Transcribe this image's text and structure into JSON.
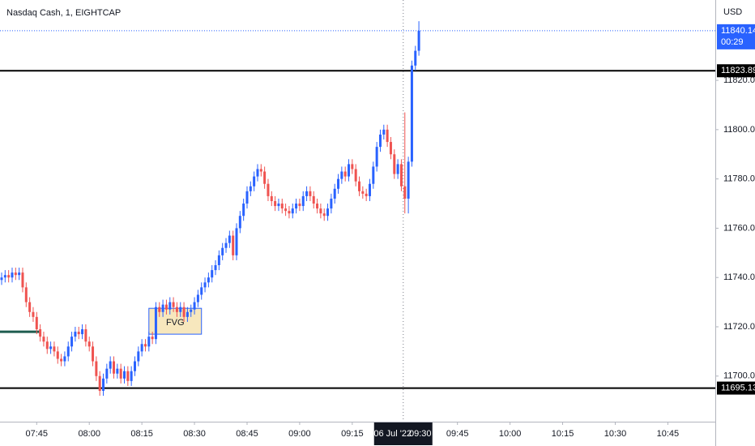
{
  "chart_data": {
    "type": "candlestick",
    "title": "Nasdaq Cash, 1, EIGHTCAP",
    "currency": "USD",
    "up_color": "#2962ff",
    "down_color": "#ef5350",
    "x": [
      "07:35",
      "07:36",
      "07:37",
      "07:38",
      "07:39",
      "07:40",
      "07:41",
      "07:42",
      "07:43",
      "07:44",
      "07:45",
      "07:46",
      "07:47",
      "07:48",
      "07:49",
      "07:50",
      "07:51",
      "07:52",
      "07:53",
      "07:54",
      "07:55",
      "07:56",
      "07:57",
      "07:58",
      "07:59",
      "08:00",
      "08:01",
      "08:02",
      "08:03",
      "08:04",
      "08:05",
      "08:06",
      "08:07",
      "08:08",
      "08:09",
      "08:10",
      "08:11",
      "08:12",
      "08:13",
      "08:14",
      "08:15",
      "08:16",
      "08:17",
      "08:18",
      "08:19",
      "08:20",
      "08:21",
      "08:22",
      "08:23",
      "08:24",
      "08:25",
      "08:26",
      "08:27",
      "08:28",
      "08:29",
      "08:30",
      "08:31",
      "08:32",
      "08:33",
      "08:34",
      "08:35",
      "08:36",
      "08:37",
      "08:38",
      "08:39",
      "08:40",
      "08:41",
      "08:42",
      "08:43",
      "08:44",
      "08:45",
      "08:46",
      "08:47",
      "08:48",
      "08:49",
      "08:50",
      "08:51",
      "08:52",
      "08:53",
      "08:54",
      "08:55",
      "08:56",
      "08:57",
      "08:58",
      "08:59",
      "09:00",
      "09:01",
      "09:02",
      "09:03",
      "09:04",
      "09:05",
      "09:06",
      "09:07",
      "09:08",
      "09:09",
      "09:10",
      "09:11",
      "09:12",
      "09:13",
      "09:14",
      "09:15",
      "09:16",
      "09:17",
      "09:18",
      "09:19",
      "09:20",
      "09:21",
      "09:22",
      "09:23",
      "09:24",
      "09:25",
      "09:26",
      "09:27",
      "09:28",
      "09:29",
      "09:30",
      "09:31",
      "09:32",
      "09:33",
      "09:34"
    ],
    "open": [
      11739,
      11740,
      11741,
      11740,
      11742,
      11741,
      11742,
      11736,
      11730,
      11726,
      11724,
      11719,
      11716,
      11714,
      11711,
      11712,
      11710,
      11707,
      11706,
      11708,
      11712,
      11716,
      11718,
      11717,
      11719,
      11714,
      11712,
      11706,
      11700,
      11694,
      11699,
      11703,
      11706,
      11701,
      11703,
      11699,
      11702,
      11698,
      11702,
      11706,
      11710,
      11713,
      11712,
      11716,
      11715,
      11728,
      11726,
      11729,
      11727,
      11730,
      11728,
      11726,
      11728,
      11724,
      11726,
      11727,
      11730,
      11733,
      11736,
      11738,
      11740,
      11743,
      11745,
      11749,
      11752,
      11754,
      11757,
      11749,
      11760,
      11765,
      11770,
      11775,
      11777,
      11781,
      11784,
      11783,
      11778,
      11773,
      11771,
      11769,
      11770,
      11768,
      11767,
      11766,
      11768,
      11770,
      11769,
      11773,
      11775,
      11773,
      11770,
      11768,
      11766,
      11765,
      11768,
      11772,
      11776,
      11780,
      11783,
      11781,
      11786,
      11784,
      11779,
      11775,
      11774,
      11773,
      11778,
      11785,
      11793,
      11798,
      11800,
      11795,
      11790,
      11782,
      11786,
      11777,
      11772,
      11787,
      11826,
      11832
    ],
    "high": [
      11742,
      11743,
      11743,
      11744,
      11744,
      11744,
      11744,
      11738,
      11732,
      11728,
      11726,
      11721,
      11718,
      11716,
      11714,
      11714,
      11712,
      11709,
      11710,
      11714,
      11718,
      11720,
      11720,
      11721,
      11721,
      11716,
      11714,
      11708,
      11702,
      11701,
      11705,
      11708,
      11708,
      11705,
      11705,
      11704,
      11704,
      11704,
      11708,
      11712,
      11715,
      11715,
      11718,
      11718,
      11730,
      11730,
      11731,
      11731,
      11732,
      11732,
      11730,
      11730,
      11730,
      11728,
      11729,
      11732,
      11735,
      11738,
      11740,
      11742,
      11745,
      11747,
      11751,
      11754,
      11756,
      11759,
      11759,
      11762,
      11767,
      11772,
      11777,
      11779,
      11783,
      11786,
      11786,
      11785,
      11780,
      11775,
      11773,
      11772,
      11772,
      11770,
      11769,
      11770,
      11772,
      11772,
      11775,
      11777,
      11777,
      11775,
      11772,
      11770,
      11768,
      11770,
      11774,
      11778,
      11782,
      11785,
      11785,
      11788,
      11788,
      11786,
      11781,
      11777,
      11776,
      11780,
      11787,
      11795,
      11800,
      11802,
      11802,
      11797,
      11792,
      11788,
      11788,
      11807,
      11789,
      11828,
      11834,
      11844
    ],
    "low": [
      11737,
      11738,
      11738,
      11738,
      11739,
      11739,
      11734,
      11728,
      11724,
      11722,
      11717,
      11714,
      11712,
      11709,
      11709,
      11708,
      11705,
      11704,
      11704,
      11706,
      11710,
      11714,
      11715,
      11715,
      11712,
      11710,
      11704,
      11698,
      11692,
      11692,
      11697,
      11701,
      11699,
      11699,
      11697,
      11697,
      11696,
      11696,
      11700,
      11704,
      11708,
      11710,
      11710,
      11713,
      11713,
      11724,
      11724,
      11725,
      11725,
      11726,
      11724,
      11724,
      11722,
      11722,
      11724,
      11725,
      11728,
      11731,
      11734,
      11736,
      11738,
      11741,
      11743,
      11747,
      11750,
      11752,
      11747,
      11747,
      11758,
      11763,
      11768,
      11773,
      11775,
      11779,
      11781,
      11776,
      11771,
      11769,
      11767,
      11767,
      11766,
      11765,
      11764,
      11764,
      11766,
      11767,
      11767,
      11771,
      11771,
      11768,
      11766,
      11764,
      11763,
      11763,
      11766,
      11770,
      11774,
      11778,
      11779,
      11779,
      11782,
      11777,
      11773,
      11772,
      11771,
      11771,
      11776,
      11783,
      11791,
      11796,
      11793,
      11788,
      11780,
      11780,
      11775,
      11766,
      11766,
      11785,
      11824,
      11830
    ],
    "close": [
      11740,
      11741,
      11740,
      11742,
      11741,
      11742,
      11736,
      11730,
      11726,
      11724,
      11719,
      11716,
      11714,
      11711,
      11712,
      11710,
      11707,
      11706,
      11708,
      11712,
      11716,
      11718,
      11717,
      11719,
      11714,
      11712,
      11706,
      11700,
      11694,
      11699,
      11703,
      11706,
      11701,
      11703,
      11699,
      11702,
      11698,
      11702,
      11706,
      11710,
      11713,
      11712,
      11716,
      11715,
      11728,
      11726,
      11729,
      11727,
      11730,
      11728,
      11726,
      11728,
      11724,
      11726,
      11727,
      11730,
      11733,
      11736,
      11738,
      11740,
      11743,
      11745,
      11749,
      11752,
      11754,
      11757,
      11749,
      11760,
      11765,
      11770,
      11775,
      11777,
      11781,
      11784,
      11783,
      11778,
      11773,
      11771,
      11769,
      11770,
      11768,
      11767,
      11766,
      11768,
      11770,
      11769,
      11773,
      11775,
      11773,
      11770,
      11768,
      11766,
      11765,
      11768,
      11772,
      11776,
      11780,
      11783,
      11781,
      11786,
      11784,
      11779,
      11775,
      11774,
      11773,
      11778,
      11785,
      11793,
      11798,
      11800,
      11795,
      11790,
      11782,
      11786,
      11777,
      11772,
      11787,
      11826,
      11832,
      11840.14
    ],
    "countdown": "00:29",
    "xlim": [
      "07:35",
      "10:59"
    ],
    "xticks": [
      "07:45",
      "08:00",
      "08:15",
      "08:30",
      "08:45",
      "09:00",
      "09:15",
      "09:45",
      "10:00",
      "10:15",
      "10:30",
      "10:45"
    ],
    "ylim": [
      11681.5,
      11852.6
    ],
    "yticks": [
      {
        "value": 11700,
        "label": "11700.00"
      },
      {
        "value": 11720,
        "label": "11720.00"
      },
      {
        "value": 11740,
        "label": "11740.00"
      },
      {
        "value": 11760,
        "label": "11760.00"
      },
      {
        "value": 11780,
        "label": "11780.00"
      },
      {
        "value": 11800,
        "label": "11800.00"
      },
      {
        "value": 11820,
        "label": "11820.00"
      }
    ],
    "levels": [
      11823.89,
      11695.13
    ],
    "level_color": "#000000",
    "crosshair": {
      "x": "09:30",
      "date": "06 Jul '22",
      "time": "09:30"
    },
    "zone": {
      "label": "FVG",
      "x": [
        "08:17",
        "08:32"
      ],
      "y": [
        11717,
        11727.5
      ],
      "fill": "#f7e7bd",
      "border": "#2962ff"
    },
    "support": {
      "x": [
        "07:35",
        "07:46"
      ],
      "y": 11718,
      "color": "#1e5d4f"
    }
  }
}
